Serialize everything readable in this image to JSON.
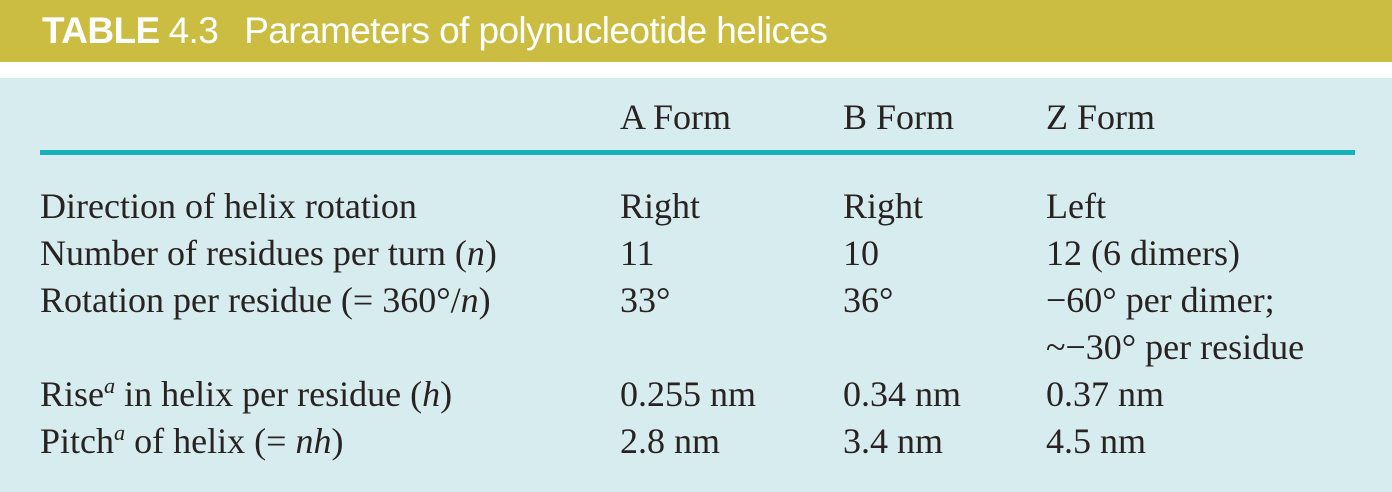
{
  "colors": {
    "header_bg": "#cabd41",
    "header_text": "#ffffff",
    "panel_bg": "#d7ecee",
    "rule": "#17b1ba",
    "body_text": "#282220",
    "page_bg": "#ffffff"
  },
  "header": {
    "label": "TABLE",
    "number": "4.3",
    "title": "Parameters of polynucleotide helices"
  },
  "table": {
    "column_headers": [
      "A Form",
      "B Form",
      "Z Form"
    ],
    "rows": [
      {
        "label": "Direction of helix rotation",
        "values": [
          "Right",
          "Right",
          "Left"
        ]
      },
      {
        "label": "Number of residues per turn (<i>n</i>)",
        "values": [
          "11",
          "10",
          "12 (6 dimers)"
        ]
      },
      {
        "label": "Rotation per residue (= 360°/<i>n</i>)",
        "values": [
          "33°",
          "36°",
          "−60° per dimer;<br>~−30° per residue"
        ]
      },
      {
        "label": "Rise<sup>a</sup> in helix per residue (<i>h</i>)",
        "values": [
          "0.255 nm",
          "0.34 nm",
          "0.37 nm"
        ]
      },
      {
        "label": "Pitch<sup>a</sup> of helix (= <i>nh</i>)",
        "values": [
          "2.8 nm",
          "3.4 nm",
          "4.5 nm"
        ]
      }
    ]
  }
}
